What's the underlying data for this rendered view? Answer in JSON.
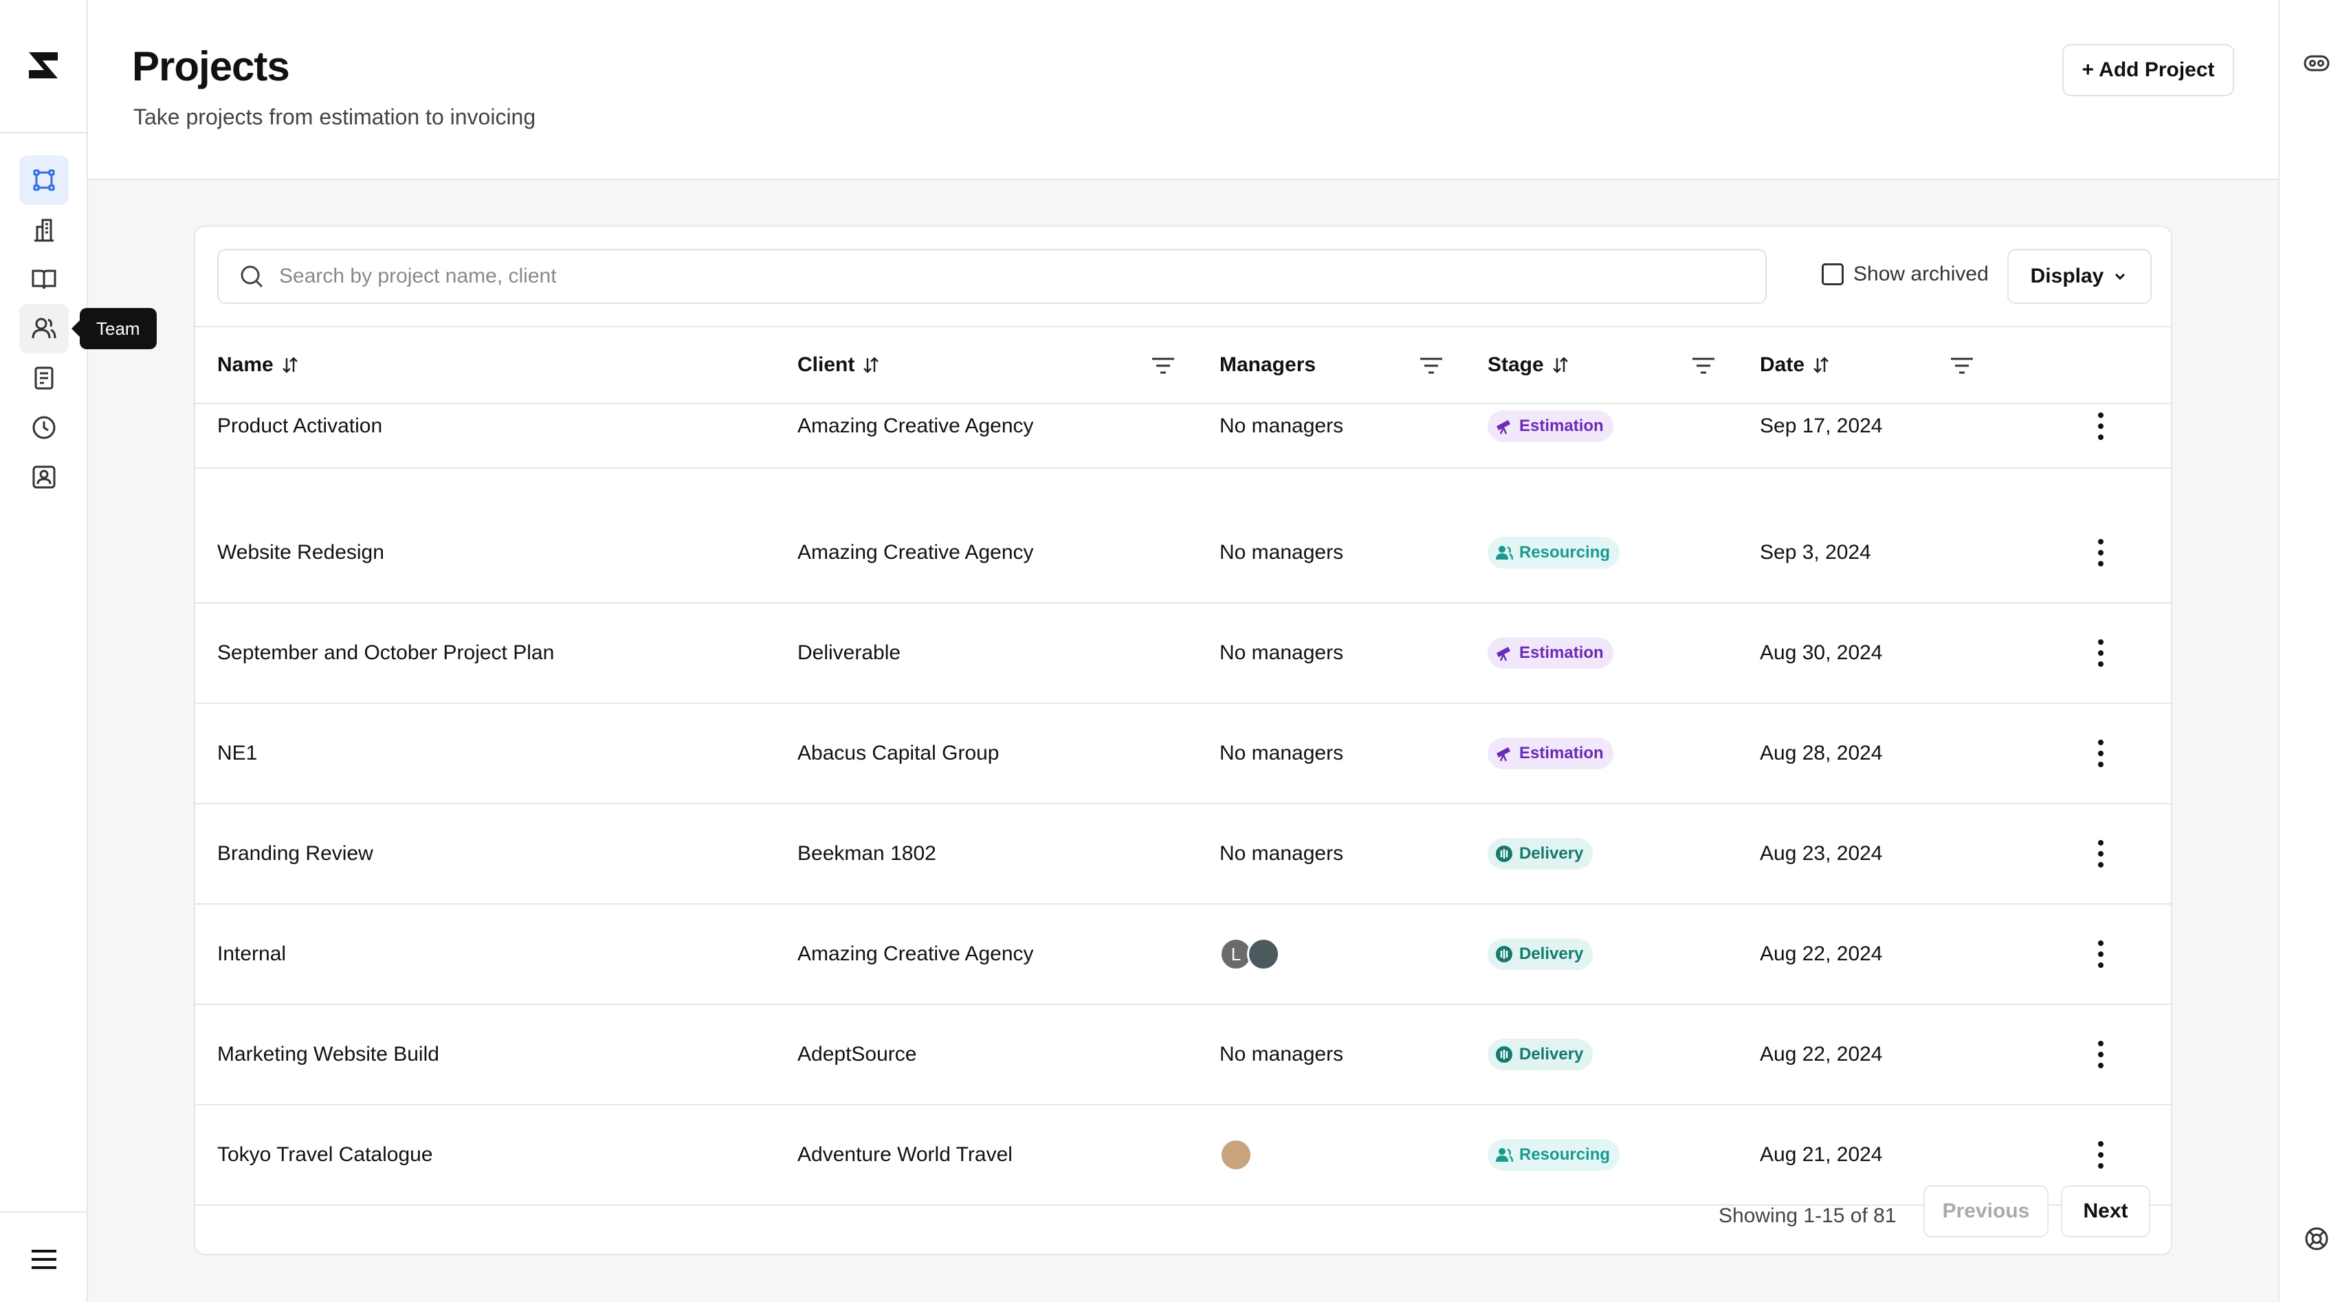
{
  "header": {
    "title": "Projects",
    "subtitle": "Take projects from estimation to invoicing",
    "add_button": "+ Add Project"
  },
  "sidebar": {
    "items": [
      {
        "icon": "projects-icon",
        "active": true
      },
      {
        "icon": "building-icon"
      },
      {
        "icon": "book-icon"
      },
      {
        "icon": "team-icon"
      },
      {
        "icon": "invoice-icon"
      },
      {
        "icon": "clock-icon"
      },
      {
        "icon": "contact-icon"
      }
    ],
    "tooltip": "Team"
  },
  "toolbar": {
    "search_placeholder": "Search by project name, client",
    "show_archived": "Show archived",
    "display": "Display"
  },
  "table": {
    "columns": {
      "name": "Name",
      "client": "Client",
      "managers": "Managers",
      "stage": "Stage",
      "date": "Date"
    },
    "rows": [
      {
        "name": "Product Activation",
        "client": "Amazing Creative Agency",
        "managers": "No managers",
        "stage": "Estimation",
        "date": "Sep 17, 2024"
      },
      {
        "name": "Website Redesign",
        "client": "Amazing Creative Agency",
        "managers": "No managers",
        "stage": "Resourcing",
        "date": "Sep 3, 2024"
      },
      {
        "name": "September and October Project Plan",
        "client": "Deliverable",
        "managers": "No managers",
        "stage": "Estimation",
        "date": "Aug 30, 2024"
      },
      {
        "name": "NE1",
        "client": "Abacus Capital Group",
        "managers": "No managers",
        "stage": "Estimation",
        "date": "Aug 28, 2024"
      },
      {
        "name": "Branding Review",
        "client": "Beekman 1802",
        "managers": "No managers",
        "stage": "Delivery",
        "date": "Aug 23, 2024"
      },
      {
        "name": "Internal",
        "client": "Amazing Creative Agency",
        "managers": "",
        "avatars": [
          "L",
          ""
        ],
        "stage": "Delivery",
        "date": "Aug 22, 2024"
      },
      {
        "name": "Marketing Website Build",
        "client": "AdeptSource",
        "managers": "No managers",
        "stage": "Delivery",
        "date": "Aug 22, 2024"
      },
      {
        "name": "Tokyo Travel Catalogue",
        "client": "Adventure World Travel",
        "managers": "",
        "avatars": [
          ""
        ],
        "stage": "Resourcing",
        "date": "Aug 21, 2024"
      }
    ]
  },
  "pagination": {
    "showing": "Showing 1-15 of 81",
    "previous": "Previous",
    "next": "Next"
  },
  "colors": {
    "accent": "#2f6fe4",
    "estimation": "#6d2ab5",
    "resourcing": "#179b8e",
    "delivery": "#137a6e"
  }
}
